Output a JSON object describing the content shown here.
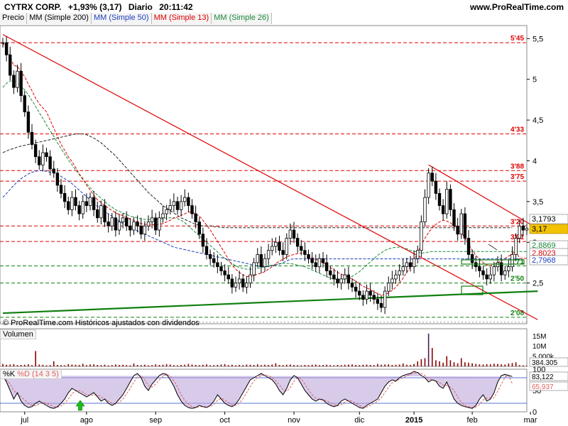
{
  "header": {
    "ticker": "CYTRX CORP.",
    "change": "+1,93% (3,17)",
    "period": "Diario",
    "time": "20:11:42",
    "site": "www.ProRealTime.com",
    "credit": "© ProRealTime.com  Históricos ajustados con dividendos"
  },
  "legend": [
    {
      "label": "Precio",
      "color": "#000000"
    },
    {
      "label": "MM (Simple 200)",
      "color": "#000000"
    },
    {
      "label": "MM (Simple 50)",
      "color": "#1f3fbf"
    },
    {
      "label": "MM (Simple 13)",
      "color": "#e00000"
    },
    {
      "label": "MM (Simple 26)",
      "color": "#1a8a3a"
    }
  ],
  "volume_panel": {
    "title": "Volumen",
    "ticks": [
      "15M",
      "10M",
      "5.000k"
    ],
    "last": "384.305"
  },
  "stoch_panel": {
    "title_k": "%K",
    "title_d": "%D (14 3 5)",
    "ticks": [
      "100",
      "50",
      "0"
    ],
    "last_k": "83,122",
    "last_d": "65,937"
  },
  "months": [
    "jul",
    "ago",
    "sep",
    "oct",
    "nov",
    "dic",
    "2015",
    "feb",
    "mar"
  ],
  "colors": {
    "up": "#1a8a3a",
    "down": "#e00000",
    "price": "#000000",
    "trend_red": "#e00000",
    "trend_green": "#108010",
    "volume": "#8b0000"
  },
  "chart_data": {
    "type": "candlestick",
    "y_ticks": [
      2.5,
      3,
      3.5,
      4,
      4.5,
      5,
      5.5
    ],
    "y_tick_labels": [
      "2,5",
      "3",
      "3,5",
      "4",
      "4,5",
      "5",
      "5,5"
    ],
    "ylim": [
      2.0,
      5.66
    ],
    "levels": [
      {
        "value": 5.45,
        "label": "5'45",
        "color": "#e00000"
      },
      {
        "value": 4.33,
        "label": "4'33",
        "color": "#e00000"
      },
      {
        "value": 3.88,
        "label": "3'88",
        "color": "#e00000"
      },
      {
        "value": 3.75,
        "label": "3'75",
        "color": "#e00000"
      },
      {
        "value": 3.2,
        "label": "3'20",
        "color": "#e00000"
      },
      {
        "value": 3.01,
        "label": "3'01",
        "color": "#e00000"
      },
      {
        "value": 2.71,
        "label": "2'71",
        "color": "#108010"
      },
      {
        "value": 2.5,
        "label": "2'50",
        "color": "#108010"
      },
      {
        "value": 2.08,
        "label": "2'08",
        "color": "#108010"
      }
    ],
    "price_labels": [
      {
        "value": 3.1793,
        "label": "3,1793",
        "bg": "#ffffff",
        "fg": "#000000"
      },
      {
        "value": 3.17,
        "label": "3,17",
        "bg": "#f2c200",
        "fg": "#000000"
      },
      {
        "value": 2.8869,
        "label": "2,8869",
        "bg": "#ffffff",
        "fg": "#1a8a3a"
      },
      {
        "value": 2.8023,
        "label": "2,8023",
        "bg": "#ffffff",
        "fg": "#e00000"
      },
      {
        "value": 2.7968,
        "label": "2,7968",
        "bg": "#ffffff",
        "fg": "#1f3fbf"
      }
    ],
    "closes": [
      5.45,
      5.3,
      5.05,
      4.9,
      5.1,
      4.8,
      4.6,
      4.35,
      4.2,
      4.05,
      3.95,
      4.1,
      4.05,
      3.9,
      3.85,
      3.7,
      3.6,
      3.5,
      3.4,
      3.55,
      3.45,
      3.35,
      3.5,
      3.45,
      3.55,
      3.4,
      3.3,
      3.45,
      3.25,
      3.2,
      3.3,
      3.15,
      3.25,
      3.3,
      3.2,
      3.15,
      3.25,
      3.2,
      3.1,
      3.2,
      3.25,
      3.3,
      3.15,
      3.3,
      3.35,
      3.4,
      3.45,
      3.5,
      3.4,
      3.5,
      3.55,
      3.45,
      3.35,
      3.25,
      3.1,
      2.95,
      2.85,
      2.8,
      2.75,
      2.7,
      2.65,
      2.6,
      2.55,
      2.45,
      2.5,
      2.55,
      2.45,
      2.5,
      2.6,
      2.75,
      2.85,
      2.7,
      2.8,
      2.9,
      2.95,
      3.0,
      2.9,
      2.85,
      3.05,
      3.15,
      3.05,
      2.95,
      2.9,
      2.85,
      2.8,
      2.75,
      2.7,
      2.8,
      2.75,
      2.65,
      2.6,
      2.55,
      2.5,
      2.55,
      2.6,
      2.5,
      2.45,
      2.4,
      2.35,
      2.3,
      2.4,
      2.35,
      2.3,
      2.25,
      2.2,
      2.4,
      2.5,
      2.55,
      2.6,
      2.65,
      2.7,
      2.75,
      2.7,
      2.8,
      2.9,
      3.25,
      3.55,
      3.85,
      3.75,
      3.6,
      3.45,
      3.35,
      3.65,
      3.4,
      3.2,
      3.1,
      3.35,
      3.05,
      2.85,
      2.75,
      2.7,
      2.65,
      2.6,
      2.55,
      2.6,
      2.7,
      2.75,
      2.6,
      2.65,
      2.7,
      2.85,
      3.05,
      3.2,
      3.15,
      3.17
    ],
    "sma13": [
      5.45,
      5.37,
      5.27,
      5.17,
      5.16,
      5.1,
      5.03,
      4.94,
      4.86,
      4.77,
      4.7,
      4.65,
      4.6,
      4.5,
      4.4,
      4.3,
      4.2,
      4.13,
      4.05,
      3.99,
      3.92,
      3.84,
      3.78,
      3.7,
      3.64,
      3.58,
      3.52,
      3.49,
      3.45,
      3.42,
      3.39,
      3.36,
      3.34,
      3.33,
      3.31,
      3.28,
      3.27,
      3.25,
      3.23,
      3.22,
      3.22,
      3.22,
      3.21,
      3.22,
      3.23,
      3.25,
      3.27,
      3.3,
      3.31,
      3.33,
      3.35,
      3.37,
      3.37,
      3.35,
      3.32,
      3.27,
      3.21,
      3.15,
      3.08,
      3.01,
      2.94,
      2.87,
      2.79,
      2.72,
      2.67,
      2.63,
      2.6,
      2.58,
      2.58,
      2.59,
      2.61,
      2.62,
      2.64,
      2.67,
      2.7,
      2.74,
      2.77,
      2.79,
      2.82,
      2.84,
      2.85,
      2.86,
      2.87,
      2.86,
      2.84,
      2.81,
      2.79,
      2.77,
      2.75,
      2.72,
      2.69,
      2.66,
      2.63,
      2.61,
      2.59,
      2.57,
      2.55,
      2.52,
      2.49,
      2.46,
      2.44,
      2.42,
      2.39,
      2.37,
      2.35,
      2.36,
      2.38,
      2.41,
      2.45,
      2.5,
      2.56,
      2.63,
      2.7,
      2.78,
      2.87,
      2.97,
      3.05,
      3.12,
      3.18,
      3.22,
      3.25,
      3.27,
      3.26,
      3.24,
      3.2,
      3.16,
      3.12,
      3.05,
      2.98,
      2.9,
      2.84,
      2.79,
      2.75,
      2.72,
      2.71,
      2.73,
      2.75,
      2.77,
      2.8,
      2.83,
      2.86,
      2.89,
      2.8023,
      2.8023,
      2.8023
    ],
    "sma26": [
      4.9,
      4.95,
      4.98,
      4.98,
      4.96,
      4.92,
      4.87,
      4.81,
      4.74,
      4.67,
      4.59,
      4.52,
      4.44,
      4.37,
      4.3,
      4.22,
      4.15,
      4.08,
      4.01,
      3.95,
      3.89,
      3.83,
      3.77,
      3.72,
      3.67,
      3.62,
      3.58,
      3.54,
      3.5,
      3.46,
      3.43,
      3.4,
      3.38,
      3.36,
      3.34,
      3.32,
      3.31,
      3.3,
      3.29,
      3.28,
      3.28,
      3.28,
      3.28,
      3.29,
      3.29,
      3.3,
      3.3,
      3.3,
      3.29,
      3.27,
      3.24,
      3.2,
      3.16,
      3.12,
      3.08,
      3.04,
      3.0,
      2.96,
      2.92,
      2.88,
      2.84,
      2.8,
      2.77,
      2.74,
      2.71,
      2.69,
      2.68,
      2.67,
      2.67,
      2.67,
      2.68,
      2.69,
      2.7,
      2.71,
      2.72,
      2.73,
      2.74,
      2.74,
      2.74,
      2.74,
      2.73,
      2.72,
      2.71,
      2.7,
      2.68,
      2.66,
      2.64,
      2.62,
      2.6,
      2.58,
      2.56,
      2.55,
      2.54,
      2.54,
      2.55,
      2.56,
      2.58,
      2.61,
      2.64,
      2.68,
      2.72,
      2.76,
      2.8,
      2.84,
      2.87,
      2.9,
      2.92,
      2.93,
      2.94,
      2.94,
      2.93,
      2.92,
      2.9,
      2.89,
      2.88,
      2.87,
      2.87,
      2.88,
      2.8869,
      2.8869,
      2.8869,
      2.8869,
      2.8869,
      2.8869,
      2.8869,
      2.8869,
      2.8869,
      2.8869,
      2.8869,
      2.8869,
      2.8869,
      2.8869,
      2.8869,
      2.8869,
      2.8869,
      2.8869,
      2.8869,
      2.8869,
      2.8869,
      2.8869,
      2.8869,
      2.8869,
      2.8869,
      2.8869,
      2.8869
    ],
    "sma50": [
      3.55,
      3.6,
      3.65,
      3.7,
      3.74,
      3.78,
      3.81,
      3.84,
      3.86,
      3.87,
      3.88,
      3.88,
      3.87,
      3.86,
      3.85,
      3.83,
      3.81,
      3.78,
      3.75,
      3.72,
      3.68,
      3.64,
      3.6,
      3.56,
      3.52,
      3.48,
      3.44,
      3.41,
      3.38,
      3.35,
      3.32,
      3.29,
      3.26,
      3.23,
      3.2,
      3.18,
      3.16,
      3.14,
      3.12,
      3.1,
      3.08,
      3.06,
      3.04,
      3.02,
      3.0,
      2.98,
      2.96,
      2.94,
      2.93,
      2.92,
      2.91,
      2.9,
      2.89,
      2.88,
      2.87,
      2.86,
      2.85,
      2.84,
      2.83,
      2.82,
      2.81,
      2.8,
      2.79,
      2.78,
      2.77,
      2.76,
      2.75,
      2.74,
      2.73,
      2.72,
      2.71,
      2.7,
      2.7,
      2.7,
      2.71,
      2.72,
      2.73,
      2.75,
      2.77,
      2.79,
      2.7968,
      2.7968,
      2.7968,
      2.7968,
      2.7968,
      2.7968,
      2.7968,
      2.7968,
      2.7968,
      2.7968,
      2.7968,
      2.7968,
      2.7968,
      2.7968,
      2.7968,
      2.7968,
      2.7968,
      2.7968,
      2.7968,
      2.7968,
      2.7968,
      2.7968,
      2.7968,
      2.7968,
      2.7968,
      2.7968,
      2.7968,
      2.7968,
      2.7968,
      2.7968,
      2.7968,
      2.7968,
      2.7968,
      2.7968,
      2.7968,
      2.7968,
      2.7968,
      2.7968,
      2.7968,
      2.7968,
      2.7968,
      2.7968,
      2.7968,
      2.7968,
      2.7968,
      2.7968,
      2.7968,
      2.7968,
      2.7968,
      2.7968,
      2.7968,
      2.7968,
      2.7968,
      2.7968,
      2.7968,
      2.7968,
      2.7968,
      2.7968,
      2.7968,
      2.7968,
      2.7968,
      2.7968,
      2.7968
    ],
    "sma200": [
      4.1,
      4.12,
      4.14,
      4.15,
      4.17,
      4.18,
      4.19,
      4.2,
      4.21,
      4.22,
      4.23,
      4.24,
      4.25,
      4.26,
      4.27,
      4.28,
      4.29,
      4.3,
      4.31,
      4.32,
      4.33,
      4.33,
      4.33,
      4.32,
      4.3,
      4.28,
      4.25,
      4.22,
      4.18,
      4.14,
      4.1,
      4.06,
      4.01,
      3.96,
      3.91,
      3.86,
      3.81,
      3.76,
      3.71,
      3.66,
      3.61,
      3.57,
      3.53,
      3.49,
      3.45,
      3.42,
      3.39,
      3.36,
      3.33,
      3.3,
      3.28,
      3.26,
      3.24,
      3.22,
      3.21,
      3.2,
      3.2,
      3.2,
      3.19,
      3.19,
      3.18,
      3.18,
      3.1793,
      3.1793,
      3.1793,
      3.1793,
      3.1793,
      3.1793,
      3.1793,
      3.1793,
      3.1793,
      3.1793,
      3.1793,
      3.1793,
      3.1793,
      3.1793,
      3.1793,
      3.1793,
      3.1793,
      3.1793,
      3.1793,
      3.1793,
      3.1793,
      3.1793,
      3.1793,
      3.1793,
      3.1793,
      3.1793,
      3.1793,
      3.1793,
      3.1793,
      3.1793,
      3.1793,
      3.1793,
      3.1793,
      3.1793,
      3.1793,
      3.1793,
      3.1793,
      3.1793,
      3.1793,
      3.1793,
      3.1793,
      3.1793,
      3.1793,
      3.1793,
      3.1793,
      3.1793,
      3.1793,
      3.1793,
      3.1793,
      3.1793,
      3.1793,
      3.1793,
      3.1793,
      3.1793,
      3.1793,
      3.1793,
      3.1793,
      3.1793,
      3.1793,
      3.1793,
      3.1793,
      3.1793,
      3.1793,
      3.1793,
      3.1793,
      3.1793,
      3.1793,
      3.1793,
      3.1793,
      3.1793,
      3.1793,
      3.1793,
      3.1793,
      3.1793,
      3.1793,
      3.1793,
      3.1793,
      3.1793,
      3.1793
    ],
    "trendlines": [
      {
        "from": [
          0,
          5.55
        ],
        "to": [
          147,
          2.05
        ],
        "color": "#e00000"
      },
      {
        "from": [
          117,
          3.95
        ],
        "to": [
          145,
          3.22
        ],
        "color": "#e00000"
      },
      {
        "from": [
          0,
          2.13
        ],
        "to": [
          147,
          2.4
        ],
        "color": "#108010"
      }
    ],
    "volume": [
      1.2,
      0.8,
      0.9,
      1.1,
      0.6,
      0.7,
      0.8,
      1.0,
      0.6,
      7.5,
      0.9,
      0.8,
      0.5,
      0.6,
      2.5,
      0.7,
      0.6,
      0.5,
      1.1,
      0.9,
      0.8,
      0.7,
      1.3,
      0.6,
      0.9,
      1.0,
      0.7,
      0.6,
      0.8,
      0.5,
      0.6,
      0.9,
      0.7,
      0.8,
      0.6,
      0.5,
      1.4,
      0.7,
      0.6,
      0.8,
      0.5,
      0.6,
      1.0,
      0.7,
      0.8,
      1.1,
      0.9,
      0.6,
      0.5,
      0.7,
      0.8,
      1.2,
      0.9,
      0.7,
      0.6,
      0.8,
      1.0,
      0.5,
      0.6,
      0.7,
      0.9,
      1.1,
      0.6,
      0.8,
      0.5,
      0.7,
      0.6,
      0.9,
      0.8,
      0.7,
      1.0,
      0.6,
      0.8,
      0.7,
      0.9,
      1.5,
      0.7,
      0.6,
      0.8,
      0.9,
      0.7,
      0.6,
      0.5,
      0.7,
      0.6,
      0.8,
      0.9,
      0.6,
      0.7,
      0.8,
      0.6,
      0.5,
      0.7,
      0.6,
      0.8,
      0.9,
      1.0,
      0.7,
      0.6,
      0.8,
      0.9,
      0.7,
      0.6,
      1.2,
      0.8,
      0.9,
      1.0,
      0.7,
      0.8,
      0.9,
      1.4,
      0.8,
      0.7,
      1.2,
      2.5,
      3.5,
      4.0,
      16.0,
      9.0,
      3.0,
      2.5,
      1.8,
      5.0,
      3.0,
      2.0,
      1.5,
      4.0,
      2.0,
      1.8,
      1.5,
      1.2,
      1.0,
      0.9,
      1.1,
      1.0,
      1.3,
      1.2,
      1.0,
      0.9,
      1.4,
      1.6,
      2.0,
      0.6,
      0.5,
      0.38
    ],
    "stoch_k": [
      85,
      70,
      50,
      30,
      45,
      25,
      15,
      10,
      12,
      20,
      25,
      20,
      15,
      10,
      8,
      12,
      20,
      30,
      45,
      55,
      50,
      45,
      40,
      35,
      40,
      45,
      35,
      25,
      30,
      20,
      15,
      20,
      30,
      40,
      55,
      70,
      85,
      90,
      80,
      60,
      50,
      65,
      75,
      85,
      90,
      88,
      75,
      60,
      40,
      25,
      15,
      10,
      8,
      10,
      15,
      12,
      10,
      15,
      25,
      40,
      30,
      20,
      15,
      12,
      18,
      30,
      45,
      60,
      75,
      80,
      85,
      90,
      85,
      80,
      75,
      65,
      50,
      40,
      55,
      75,
      85,
      80,
      65,
      50,
      40,
      30,
      25,
      30,
      28,
      20,
      15,
      12,
      15,
      25,
      30,
      25,
      20,
      15,
      10,
      8,
      15,
      20,
      25,
      30,
      45,
      60,
      70,
      75,
      72,
      80,
      85,
      88,
      90,
      95,
      92,
      85,
      80,
      70,
      75,
      72,
      60,
      55,
      70,
      50,
      30,
      20,
      15,
      12,
      10,
      8,
      15,
      30,
      40,
      25,
      30,
      45,
      70,
      85,
      88,
      85,
      83
    ],
    "stoch_d": [
      80,
      75,
      65,
      50,
      42,
      35,
      28,
      20,
      15,
      14,
      18,
      22,
      20,
      16,
      12,
      11,
      14,
      20,
      30,
      42,
      50,
      50,
      46,
      40,
      38,
      40,
      40,
      35,
      30,
      25,
      20,
      18,
      22,
      30,
      42,
      55,
      70,
      82,
      85,
      75,
      62,
      58,
      65,
      75,
      83,
      88,
      84,
      73,
      58,
      40,
      27,
      18,
      12,
      10,
      12,
      12,
      12,
      12,
      17,
      27,
      32,
      28,
      22,
      16,
      15,
      20,
      31,
      45,
      60,
      72,
      80,
      85,
      87,
      85,
      80,
      73,
      63,
      52,
      48,
      57,
      72,
      80,
      77,
      65,
      52,
      40,
      32,
      28,
      28,
      26,
      21,
      16,
      14,
      17,
      23,
      27,
      25,
      20,
      15,
      11,
      11,
      15,
      20,
      25,
      33,
      45,
      58,
      68,
      72,
      76,
      80,
      84,
      88,
      91,
      92,
      90,
      85,
      78,
      75,
      73,
      69,
      62,
      62,
      58,
      50,
      35,
      22,
      15,
      12,
      10,
      11,
      17,
      28,
      32,
      32,
      33,
      48,
      65,
      81,
      86,
      65.9
    ]
  }
}
